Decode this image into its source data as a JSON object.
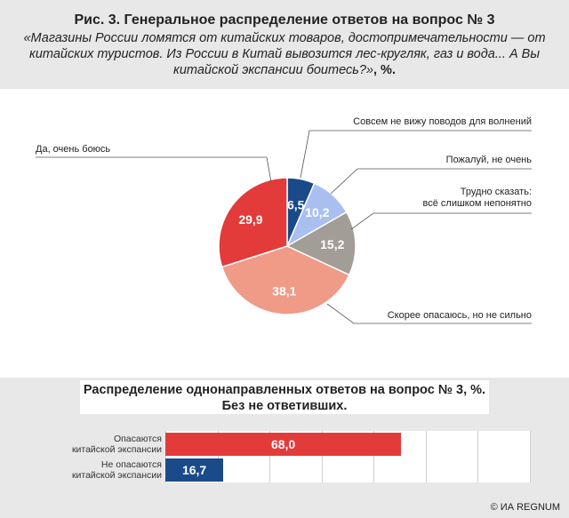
{
  "header": {
    "title": "Рис. 3. Генеральное распределение ответов на вопрос № 3",
    "subtitle": "«Магазины России ломятся от китайских товаров, достопримечательности — от китайских туристов. Из России в Китай вывозится лес-кругляк, газ и вода... А Вы китайской экспансии боитесь?»",
    "unit": ", %."
  },
  "chart_data": [
    {
      "type": "pie",
      "title": "Рис. 3. Генеральное распределение ответов на вопрос № 3",
      "slices": [
        {
          "label": "Совсем не вижу поводов для волнений",
          "value": 6.5,
          "display": "6,5",
          "color": "#1a4a8a"
        },
        {
          "label": "Пожалуй, не очень",
          "value": 10.2,
          "display": "10,2",
          "color": "#a9bff0"
        },
        {
          "label": "Трудно сказать: всё слишком непонятно",
          "value": 15.2,
          "display": "15,2",
          "color": "#a39d97"
        },
        {
          "label": "Скорее опасаюсь, но не сильно",
          "value": 38.1,
          "display": "38,1",
          "color": "#f09a88"
        },
        {
          "label": "Да, очень боюсь",
          "value": 29.9,
          "display": "29,9",
          "color": "#e33a3a"
        }
      ]
    },
    {
      "type": "bar",
      "title": "Распределение однонаправленных ответов на вопрос № 3, %. Без не ответивших.",
      "orientation": "horizontal",
      "xlim": [
        0,
        100
      ],
      "bars": [
        {
          "label": "Опасаются китайской экспансии",
          "value": 68.0,
          "display": "68,0",
          "color": "#e33a3a"
        },
        {
          "label": "Не опасаются китайской экспансии",
          "value": 16.7,
          "display": "16,7",
          "color": "#1a4a8a"
        }
      ]
    }
  ],
  "bar_section": {
    "title_line1": "Распределение однонаправленных ответов на вопрос № 3, %.",
    "title_line2": "Без не ответивших."
  },
  "credit": "© ИА REGNUM"
}
